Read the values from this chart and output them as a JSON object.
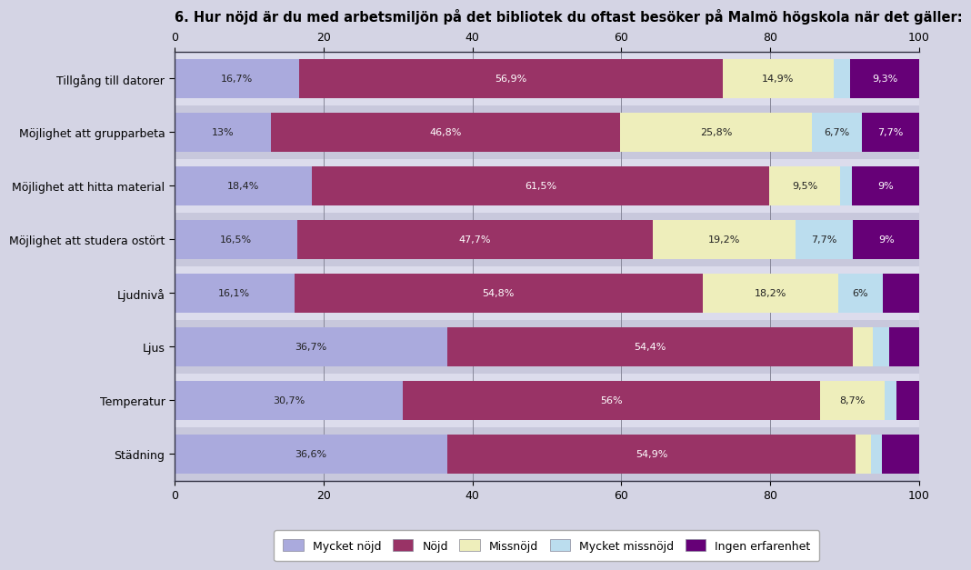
{
  "title": "6. Hur nöjd är du med arbetsmiljön på det bibliotek du oftast besöker på Malmö högskola när det gäller:",
  "categories": [
    "Tillgång till datorer",
    "Möjlighet att grupparbeta",
    "Möjlighet att hitta material",
    "Möjlighet att studera ostört",
    "Ljudnivå",
    "Ljus",
    "Temperatur",
    "Städning"
  ],
  "series": {
    "Mycket nöjd": [
      16.7,
      13.0,
      18.4,
      16.5,
      16.1,
      36.7,
      30.7,
      36.6
    ],
    "Nöjd": [
      56.9,
      46.8,
      61.5,
      47.7,
      54.8,
      54.4,
      56.0,
      54.9
    ],
    "Missnöjd": [
      14.9,
      25.8,
      9.5,
      19.2,
      18.2,
      2.7,
      8.7,
      2.0
    ],
    "Mycket missnöjd": [
      2.2,
      6.7,
      1.6,
      7.7,
      6.0,
      2.2,
      1.5,
      1.5
    ],
    "Ingen erfarenhet": [
      9.3,
      7.7,
      9.0,
      9.0,
      4.9,
      4.0,
      3.1,
      5.0
    ]
  },
  "labels": {
    "Mycket nöjd": [
      "16,7%",
      "13%",
      "18,4%",
      "16,5%",
      "16,1%",
      "36,7%",
      "30,7%",
      "36,6%"
    ],
    "Nöjd": [
      "56,9%",
      "46,8%",
      "61,5%",
      "47,7%",
      "54,8%",
      "54,4%",
      "56%",
      "54,9%"
    ],
    "Missnöjd": [
      "14,9%",
      "25,8%",
      "9,5%",
      "19,2%",
      "18,2%",
      "",
      "8,7%",
      ""
    ],
    "Mycket missnöjd": [
      "",
      "6,7%",
      "",
      "7,7%",
      "6%",
      "",
      "",
      ""
    ],
    "Ingen erfarenhet": [
      "9,3%",
      "7,7%",
      "9%",
      "9%",
      "",
      "",
      "",
      ""
    ]
  },
  "colors": {
    "Mycket nöjd": "#aaaadd",
    "Nöjd": "#993366",
    "Missnöjd": "#eeeebb",
    "Mycket missnöjd": "#bbddee",
    "Ingen erfarenhet": "#660077"
  },
  "background_color": "#d4d4e4",
  "plot_bg_color": "#dcdcec",
  "row_alt_color": "#c8c8dc",
  "xlim": [
    0,
    100
  ],
  "bar_height": 0.72,
  "fontsize_title": 10.5,
  "fontsize_labels": 8,
  "fontsize_ticks": 9,
  "fontsize_legend": 9
}
